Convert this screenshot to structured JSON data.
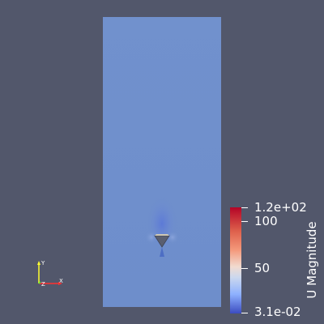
{
  "colorbar": {
    "title": "U Magnitude",
    "max_label": "1.2e+02",
    "label_100": "100",
    "label_50": "50",
    "min_label": "3.1e-02",
    "colors": {
      "high": "#b40426",
      "mid": "#dddcdc",
      "low": "#3b4cc0"
    }
  },
  "field_colors": {
    "background": "#52576b",
    "domain": "#6f8fcc"
  },
  "axes": {
    "x_label": "X",
    "y_label": "Y",
    "z_label": "Z",
    "x_color": "#ff3030",
    "y_color": "#ffff30",
    "z_color": "#30ff30"
  }
}
